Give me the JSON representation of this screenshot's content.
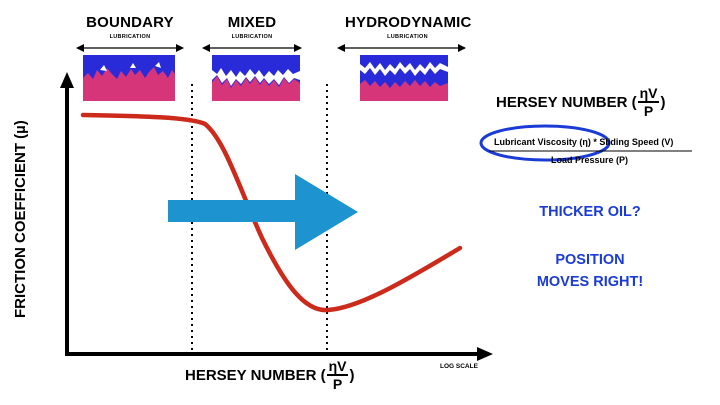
{
  "regimes": [
    {
      "title": "BOUNDARY",
      "subtitle": "LUBRICATION"
    },
    {
      "title": "MIXED",
      "subtitle": "LUBRICATION"
    },
    {
      "title": "HYDRODYNAMIC",
      "subtitle": "LUBRICATION"
    }
  ],
  "axes": {
    "y_label": "FRICTION COEFFICIENT (µ)",
    "x_label": "HERSEY NUMBER (",
    "x_label_close": ")",
    "frac_num": "ηV",
    "frac_den": "P",
    "log_scale": "LOG SCALE"
  },
  "formula": {
    "title": "HERSEY NUMBER (",
    "title_close": ")",
    "frac_num": "ηV",
    "frac_den": "P",
    "numerator_a": "Lubricant Viscosity (η)",
    "numerator_op": " * ",
    "numerator_b": "Sliding Speed (V)",
    "denominator": "Load Pressure (P)"
  },
  "callouts": {
    "question": "THICKER OIL?",
    "answer_line1": "POSITION",
    "answer_line2": "MOVES RIGHT!"
  },
  "colors": {
    "curve": "#cc2a1a",
    "arrow": "#1d93cf",
    "highlight_ellipse": "#1a3bd6",
    "lubricant": "#2a2bd8",
    "surface": "#d6357a",
    "text_blue": "#1a3bd6"
  }
}
